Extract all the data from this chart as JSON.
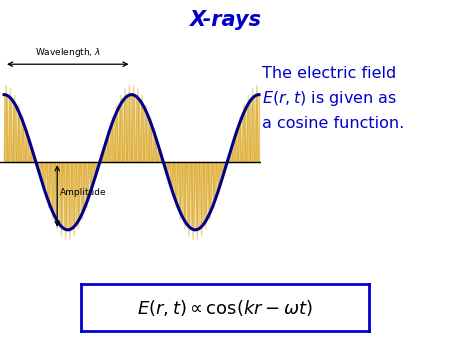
{
  "title": "X-rays",
  "title_color": "#0000CC",
  "title_fontsize": 15,
  "wave_color": "#00008B",
  "wave_linewidth": 2.2,
  "fill_color": "#F5DEB3",
  "fill_color2": "#DAA520",
  "background_color": "#FFFFFF",
  "description_color": "#0000CC",
  "description_fontsize": 11.5,
  "description_line1": "The electric field",
  "description_line2": "$E(r,t)$ is given as",
  "description_line3": "a cosine function.",
  "wavelength_label": "Wavelength, $\\lambda$",
  "amplitude_label": "Amplitude",
  "formula_fontsize": 13,
  "formula_box_color": "#0000CC"
}
